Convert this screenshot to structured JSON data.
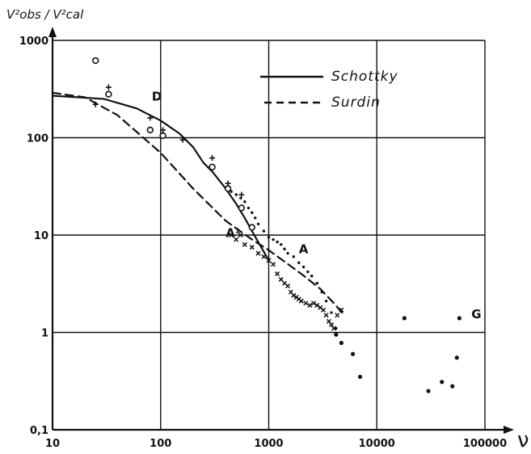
{
  "chart_data": {
    "type": "scatter",
    "title": "",
    "ylabel": "V²obs / V²cal",
    "xlabel": "ν",
    "x_scale": "log",
    "y_scale": "log",
    "xlim": [
      10,
      100000
    ],
    "ylim": [
      0.1,
      1000
    ],
    "grid": true,
    "legend_position": "top-right",
    "x_ticks": [
      "10",
      "100",
      "1000",
      "10000",
      "100000"
    ],
    "y_ticks": [
      "1000",
      "100",
      "10",
      "1",
      "0,1"
    ],
    "lines": [
      {
        "name": "Schottky",
        "style": "solid",
        "x": [
          10,
          30,
          60,
          100,
          150,
          200,
          250,
          300,
          400,
          500,
          600,
          700,
          800,
          1000
        ],
        "y": [
          270,
          250,
          200,
          150,
          110,
          80,
          55,
          45,
          30,
          21,
          15,
          11,
          8.5,
          5.5
        ]
      },
      {
        "name": "Surdin",
        "style": "dashed",
        "x": [
          10,
          20,
          40,
          100,
          200,
          400,
          700,
          1000,
          2000,
          3000,
          4000,
          5000
        ],
        "y": [
          290,
          260,
          170,
          70,
          30,
          14,
          9,
          7,
          4,
          2.8,
          2.0,
          1.5
        ]
      }
    ],
    "point_groups": [
      {
        "marker": "circle",
        "x": [
          25,
          33,
          80,
          105,
          300,
          420,
          560,
          700
        ],
        "y": [
          620,
          280,
          120,
          105,
          50,
          30,
          19,
          12
        ]
      },
      {
        "marker": "plus",
        "x": [
          25,
          33,
          80,
          105,
          160,
          300,
          420,
          560
        ],
        "y": [
          220,
          330,
          160,
          120,
          95,
          62,
          34,
          26
        ]
      },
      {
        "marker": "dot",
        "x": [
          4200,
          4700,
          6000,
          7000,
          18000,
          30000,
          40000,
          50000,
          55000,
          58000
        ],
        "y": [
          0.95,
          0.78,
          0.6,
          0.35,
          1.4,
          0.25,
          0.31,
          0.28,
          0.55,
          1.4
        ]
      },
      {
        "marker": "cross-series",
        "x": [
          450,
          500,
          550,
          600,
          700,
          800,
          900,
          1000,
          1100,
          1200,
          1300,
          1400,
          1500,
          1600,
          1700,
          1800,
          1900,
          2000,
          2200,
          2400,
          2600,
          2800,
          3000,
          3200,
          3400,
          3600,
          3800,
          4000,
          4300,
          4700
        ],
        "y": [
          10,
          9,
          10,
          8,
          7.5,
          6.5,
          6,
          5.5,
          5,
          4,
          3.5,
          3.2,
          3,
          2.6,
          2.4,
          2.3,
          2.2,
          2.1,
          2.0,
          1.9,
          2.0,
          1.9,
          1.8,
          1.7,
          1.5,
          1.3,
          1.2,
          1.1,
          1.5,
          1.7
        ]
      },
      {
        "marker": "dotted-series",
        "x": [
          450,
          500,
          550,
          600,
          650,
          700,
          750,
          800,
          900,
          1000,
          1100,
          1200,
          1300,
          1400,
          1500,
          1700,
          1900,
          2100,
          2300,
          2500,
          2800,
          3100,
          3400,
          3800,
          4200
        ],
        "y": [
          28,
          26,
          24,
          22,
          19,
          17,
          15,
          13,
          11,
          9.5,
          9,
          8.5,
          8,
          7.2,
          6.5,
          6,
          5.2,
          4.7,
          4.2,
          3.8,
          3.2,
          2.6,
          2.1,
          1.6,
          1.1
        ]
      }
    ],
    "annotations": [
      {
        "label": "D",
        "x": 83,
        "y": 240
      },
      {
        "label": "A¹",
        "x": 400,
        "y": 9.5
      },
      {
        "label": "A",
        "x": 1900,
        "y": 6.5
      },
      {
        "label": "G",
        "x": 75000,
        "y": 1.4
      }
    ]
  }
}
